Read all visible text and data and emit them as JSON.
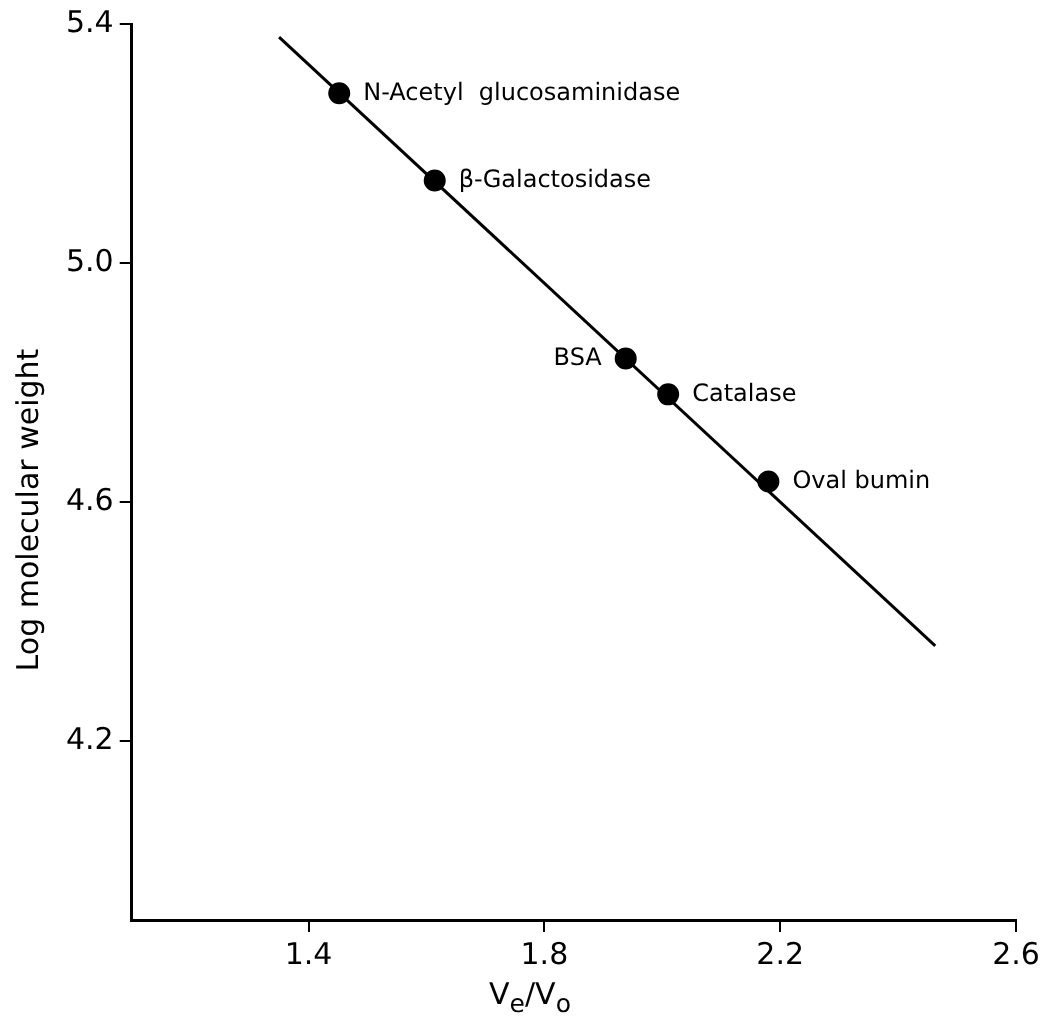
{
  "chart_data": {
    "type": "scatter",
    "xlabel": "V$_{e}$/V$_{o}$",
    "ylabel": "Log molecular weight",
    "xlim": [
      1.1,
      2.6
    ],
    "xticks": [
      1.4,
      1.8,
      2.2,
      2.6
    ],
    "ylim": [
      3.9,
      5.4
    ],
    "yticks": [
      4.2,
      4.6,
      {
        "value": 5.0,
        "label": "5.0"
      },
      5.4
    ],
    "grid": false,
    "legend": false,
    "marker": "circle",
    "series": [
      {
        "type": "scatter",
        "color": "#000000",
        "x": [
          1.452,
          1.614,
          1.938,
          2.01,
          2.18
        ],
        "values": [
          5.284,
          5.138,
          4.84,
          4.78,
          4.634
        ]
      },
      {
        "type": "line",
        "color": "#000000",
        "x": [
          1.35,
          2.463
        ],
        "values": [
          5.378,
          4.359
        ],
        "marker": "none",
        "line_style": "solid"
      }
    ],
    "annotations": [
      {
        "text": "N-Acetyl  glucosaminidase",
        "x": 1.452,
        "y": 5.284
      },
      {
        "text": "β-Galactosidase",
        "x": 1.614,
        "y": 5.138
      },
      {
        "text": "BSA",
        "x": 1.938,
        "y": 4.84
      },
      {
        "text": "Catalase",
        "x": 2.01,
        "y": 4.78
      },
      {
        "text": "Oval bumin",
        "x": 2.18,
        "y": 4.634
      }
    ]
  }
}
